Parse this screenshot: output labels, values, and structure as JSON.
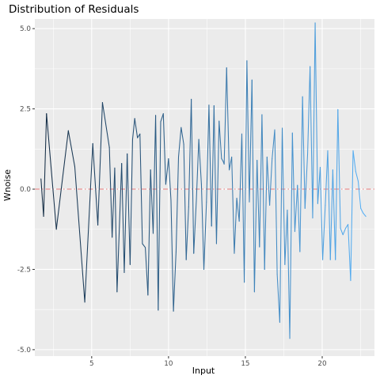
{
  "chart_data": {
    "type": "line",
    "title": "Distribution of Residuals",
    "xlabel": "Input",
    "ylabel": "Wnoise",
    "xlim": [
      1.3,
      23.4
    ],
    "ylim": [
      -5.2,
      5.3
    ],
    "x_ticks": [
      5,
      10,
      15,
      20
    ],
    "x_tick_labels": [
      "5",
      "10",
      "15",
      "20"
    ],
    "y_ticks": [
      -5.0,
      -2.5,
      0.0,
      2.5,
      5.0
    ],
    "y_tick_labels": [
      "-5.0",
      "-2.5",
      "0.0",
      "2.5",
      "5.0"
    ],
    "grid": true,
    "legend": "none",
    "colors": {
      "panel_background": "#ebebeb",
      "grid_major": "#ffffff",
      "line_start": "#132b43",
      "line_end": "#56b1f7",
      "reference_line": "#e87a7a"
    },
    "reference_line": {
      "y": 0.0,
      "style": "dashdot"
    },
    "series": [
      {
        "x": [
          1.7,
          1.87,
          2.06,
          2.7,
          3.48,
          3.9,
          4.55,
          5.07,
          5.4,
          5.7,
          6.15,
          6.33,
          6.5,
          6.65,
          6.95,
          7.12,
          7.31,
          7.5,
          7.66,
          7.8,
          7.98,
          8.14,
          8.3,
          8.49,
          8.66,
          8.83,
          9.0,
          9.16,
          9.33,
          9.49,
          9.66,
          9.82,
          10.0,
          10.16,
          10.32,
          10.49,
          10.65,
          10.82,
          10.99,
          11.15,
          11.31,
          11.48,
          11.64,
          11.81,
          11.97,
          12.14,
          12.3,
          12.47,
          12.63,
          12.8,
          12.96,
          13.12,
          13.29,
          13.45,
          13.55,
          13.62,
          13.78,
          13.95,
          14.11,
          14.28,
          14.44,
          14.6,
          14.77,
          14.93,
          15.1,
          15.26,
          15.43,
          15.59,
          15.76,
          15.92,
          16.08,
          16.25,
          16.41,
          16.58,
          16.74,
          16.91,
          17.07,
          17.24,
          17.4,
          17.57,
          17.73,
          17.89,
          18.06,
          18.22,
          18.39,
          18.55,
          18.72,
          18.88,
          19.05,
          19.21,
          19.38,
          19.54,
          19.71,
          19.87,
          20.03,
          20.2,
          20.36,
          20.53,
          20.69,
          20.86,
          21.02,
          21.19,
          21.35,
          21.52,
          21.68,
          21.85,
          22.01,
          22.18,
          22.34,
          22.51,
          22.67,
          22.84
        ],
        "y": [
          0.32,
          -0.85,
          2.35,
          -1.25,
          1.82,
          0.7,
          -3.52,
          1.42,
          -1.12,
          2.7,
          1.3,
          -1.5,
          0.66,
          -3.2,
          0.8,
          -2.6,
          1.1,
          -2.35,
          1.55,
          2.2,
          1.6,
          1.72,
          -1.7,
          -1.82,
          -3.3,
          0.6,
          -1.38,
          2.3,
          -3.77,
          2.1,
          2.35,
          0.15,
          0.95,
          -0.35,
          -3.8,
          -1.95,
          1.0,
          1.92,
          1.4,
          -2.2,
          -0.55,
          2.8,
          -2.0,
          -0.35,
          1.55,
          0.15,
          -2.5,
          -0.4,
          2.62,
          -1.15,
          2.6,
          -1.7,
          2.12,
          0.95,
          0.87,
          0.78,
          3.78,
          0.6,
          1.0,
          -2.0,
          -0.28,
          -1.0,
          1.72,
          -2.9,
          4.0,
          -0.4,
          3.4,
          -3.2,
          0.9,
          -1.8,
          2.32,
          -2.5,
          1.0,
          -0.5,
          0.95,
          1.85,
          -2.65,
          -4.15,
          1.9,
          -2.35,
          -0.65,
          -4.65,
          1.75,
          -1.32,
          0.12,
          -1.95,
          2.88,
          -0.6,
          1.1,
          3.82,
          -0.9,
          5.18,
          -0.45,
          0.68,
          -2.2,
          -0.5,
          1.2,
          -2.2,
          0.6,
          -2.2,
          2.48,
          -1.22,
          -1.42,
          -1.22,
          -1.1,
          -2.85,
          1.2,
          0.55,
          0.25,
          -0.6,
          -0.75,
          -0.85
        ]
      }
    ]
  }
}
